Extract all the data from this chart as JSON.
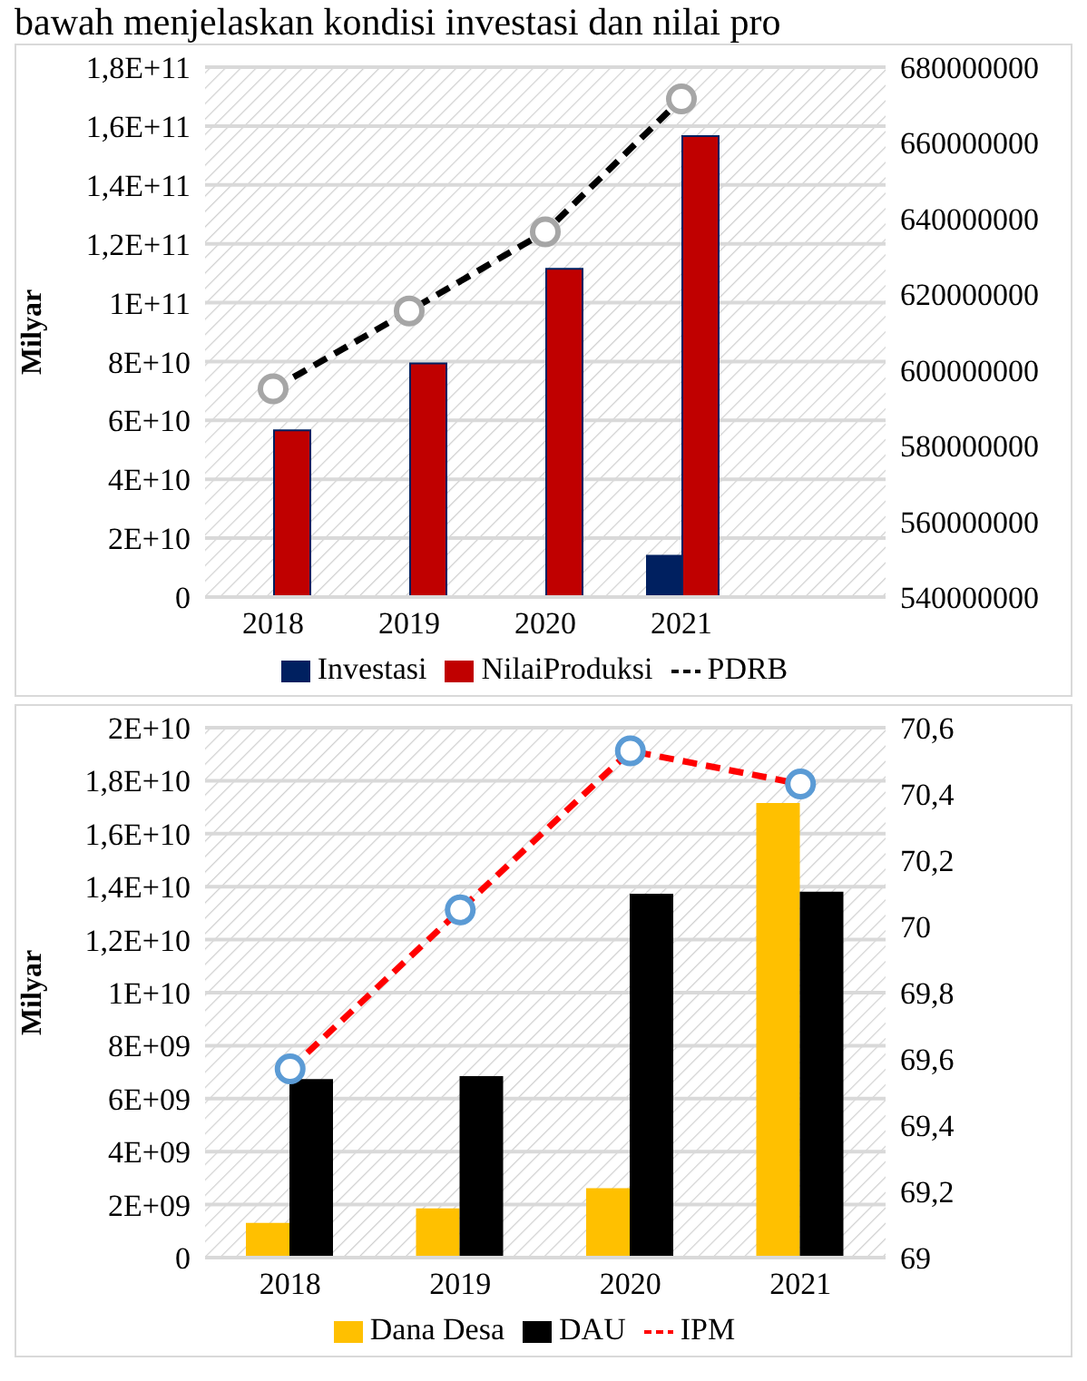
{
  "chart_data": [
    {
      "type": "bar",
      "annotations": [
        "bawah menjelaskan kondisi investasi dan nilai pro"
      ],
      "ylabel": "Milyar",
      "categories": [
        "2018",
        "2019",
        "2020",
        "2021",
        null
      ],
      "series": [
        {
          "name": "Investasi",
          "color": "#002060",
          "values": [
            0,
            0,
            500000000.0,
            14300000000.0,
            null
          ]
        },
        {
          "name": "NilaiProduksi",
          "color": "#c00000",
          "values": [
            56600000000.0,
            79400000000.0,
            111500000000.0,
            156600000000.0,
            null
          ]
        },
        {
          "name": "PDRB",
          "type": "line",
          "axis": "y2",
          "color": "#000000",
          "values": [
            595000000,
            615600000,
            636500000,
            671600000,
            null
          ]
        }
      ],
      "ylim": [
        0,
        180000000000.0
      ],
      "yticks": [
        0,
        {
          "value": 20000000000.0,
          "label": "2E+10"
        },
        {
          "value": 40000000000.0,
          "label": "4E+10"
        },
        {
          "value": 60000000000.0,
          "label": "6E+10"
        },
        {
          "value": 80000000000.0,
          "label": "8E+10"
        },
        {
          "value": 100000000000.0,
          "label": "1E+11"
        },
        {
          "value": 120000000000.0,
          "label": "1,2E+11"
        },
        {
          "value": 140000000000.0,
          "label": "1,4E+11"
        },
        {
          "value": 160000000000.0,
          "label": "1,6E+11"
        },
        {
          "value": 180000000000.0,
          "label": "1,8E+11"
        }
      ],
      "y2lim": [
        540000000,
        680000000
      ],
      "y2ticks": [
        540000000,
        560000000,
        580000000,
        600000000,
        620000000,
        640000000,
        660000000,
        680000000
      ],
      "grid": "y",
      "legend": "bottom",
      "marker": "circle",
      "line_style": "dashed"
    },
    {
      "type": "bar",
      "ylabel": "Milyar",
      "categories": [
        "2018",
        "2019",
        "2020",
        "2021"
      ],
      "series": [
        {
          "name": "Dana Desa",
          "color": "#ffc000",
          "values": [
            1310000000.0,
            1860000000.0,
            2620000000.0,
            17160000000.0
          ]
        },
        {
          "name": "DAU",
          "color": "#000000",
          "values": [
            6740000000.0,
            6850000000.0,
            13730000000.0,
            13810000000.0
          ]
        },
        {
          "name": "IPM",
          "type": "line",
          "axis": "y2",
          "color": "#ff0000",
          "values": [
            69.57,
            70.05,
            70.53,
            70.43
          ]
        }
      ],
      "ylim": [
        0,
        20000000000.0
      ],
      "yticks": [
        0,
        {
          "value": 2000000000.0,
          "label": "2E+09"
        },
        {
          "value": 4000000000.0,
          "label": "4E+09"
        },
        {
          "value": 6000000000.0,
          "label": "6E+09"
        },
        {
          "value": 8000000000.0,
          "label": "8E+09"
        },
        {
          "value": 10000000000.0,
          "label": "1E+10"
        },
        {
          "value": 12000000000.0,
          "label": "1,2E+10"
        },
        {
          "value": 14000000000.0,
          "label": "1,4E+10"
        },
        {
          "value": 16000000000.0,
          "label": "1,6E+10"
        },
        {
          "value": 18000000000.0,
          "label": "1,8E+10"
        },
        {
          "value": 20000000000.0,
          "label": "2E+10"
        }
      ],
      "y2lim": [
        69,
        70.6
      ],
      "y2ticks": [
        69,
        {
          "value": 69.2,
          "label": "69,2"
        },
        {
          "value": 69.4,
          "label": "69,4"
        },
        {
          "value": 69.6,
          "label": "69,6"
        },
        {
          "value": 69.8,
          "label": "69,8"
        },
        70,
        {
          "value": 70.2,
          "label": "70,2"
        },
        {
          "value": 70.4,
          "label": "70,4"
        },
        {
          "value": 70.6,
          "label": "70,6"
        }
      ],
      "grid": "y",
      "legend": "bottom",
      "marker": "circle",
      "line_style": "dashed"
    }
  ]
}
